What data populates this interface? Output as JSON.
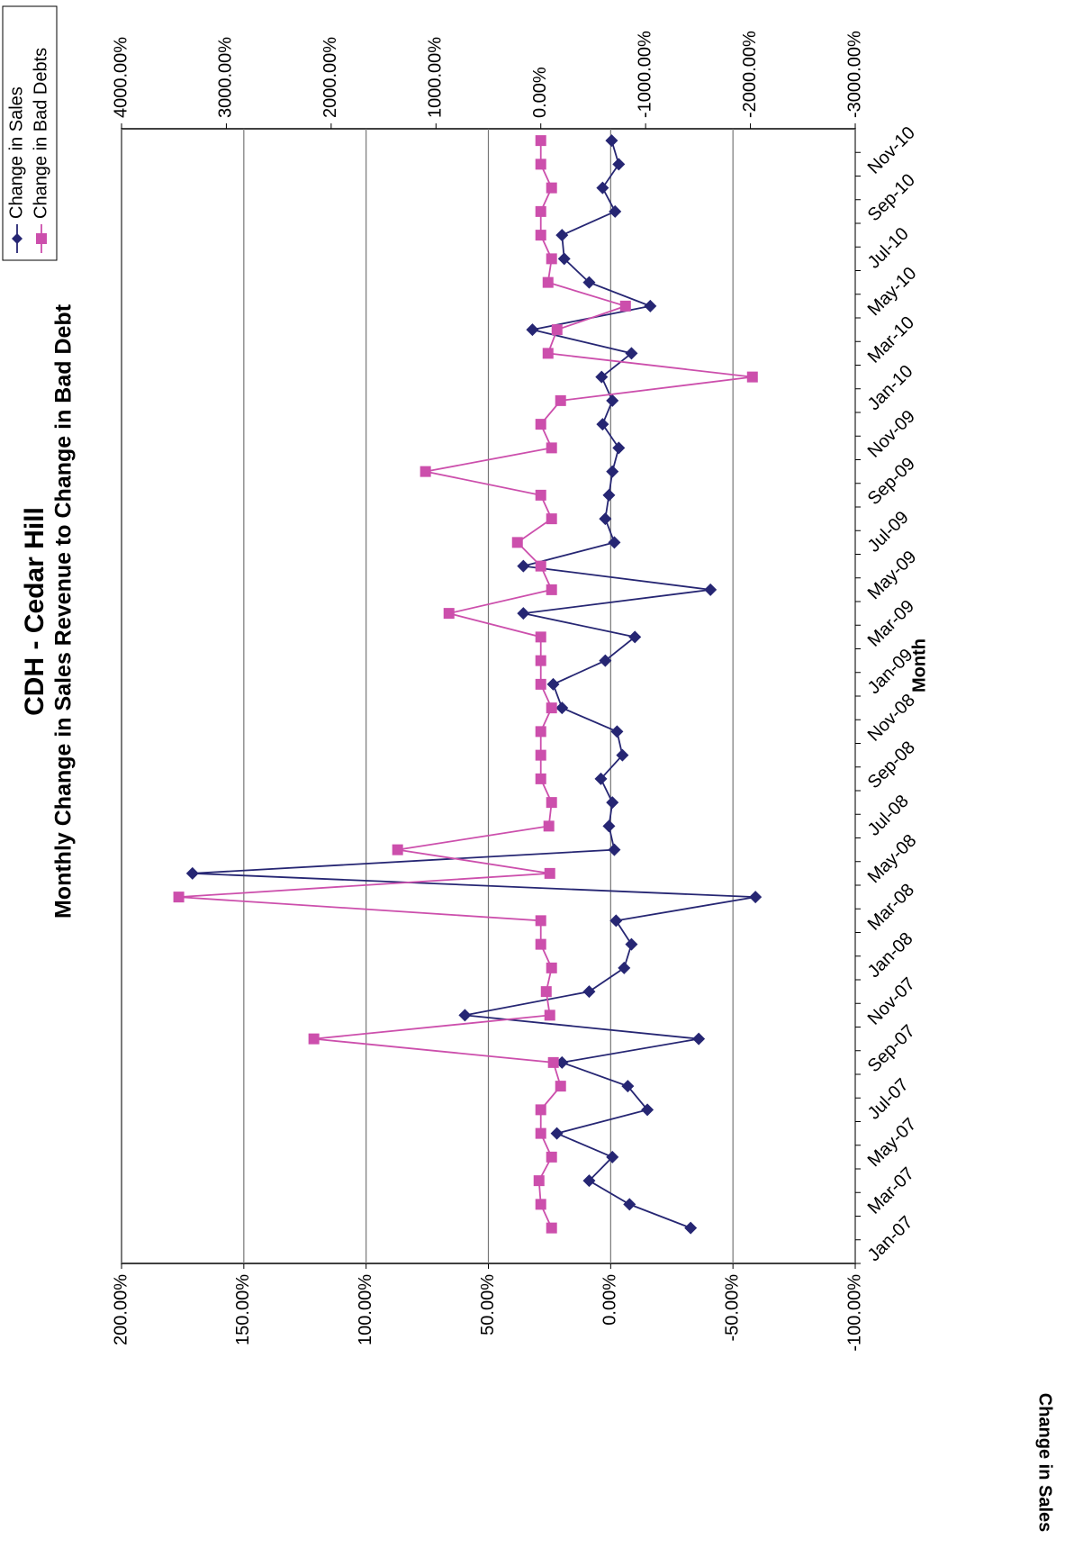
{
  "chart_data": {
    "type": "line",
    "title": "CDH - Cedar Hill",
    "subtitle": "Monthly Change in Sales Revenue to Change in Bad Debt",
    "x_label": "Month",
    "y_label": "Change in Sales",
    "categories": [
      "Jan-07",
      null,
      "Mar-07",
      null,
      "May-07",
      null,
      "Jul-07",
      null,
      "Sep-07",
      null,
      "Nov-07",
      null,
      "Jan-08",
      null,
      "Mar-08",
      null,
      "May-08",
      null,
      "Jul-08",
      null,
      "Sep-08",
      null,
      "Nov-08",
      null,
      "Jan-09",
      null,
      "Mar-09",
      null,
      "May-09",
      null,
      "Jul-09",
      null,
      "Sep-09",
      null,
      "Nov-09",
      null,
      "Jan-10",
      null,
      "Mar-10",
      null,
      "May-10",
      null,
      "Jul-10",
      null,
      "Sep-10",
      null,
      "Nov-10",
      null
    ],
    "series": [
      {
        "name": "Change in Sales",
        "color": "#262673",
        "marker": "diamond",
        "axis": "y",
        "values": [
          null,
          -32.7,
          -7.7,
          8.8,
          -0.7,
          22,
          -15,
          -7,
          19.9,
          -36,
          59.6,
          8.8,
          -5.5,
          -8.5,
          -2.2,
          -59.2,
          171,
          -1.5,
          0.7,
          -0.7,
          4,
          -4.8,
          -2.6,
          19.9,
          23.5,
          2.2,
          -9.9,
          35.7,
          -40.8,
          35.7,
          -1.5,
          2.2,
          0.7,
          -0.7,
          -3.3,
          3.3,
          -0.7,
          3.7,
          -8.5,
          32,
          -16.2,
          8.8,
          19,
          19.9,
          -1.8,
          3.3,
          -3.3,
          -0.4
        ]
      },
      {
        "name": "Change in Bad Debts",
        "color": "#cc4fac",
        "marker": "square",
        "axis": "y2",
        "values": [
          null,
          -103,
          0,
          17,
          -103,
          0,
          0,
          -189,
          -120,
          2165,
          -86,
          -52,
          -103,
          0,
          0,
          3454,
          -86,
          1366,
          -77,
          -103,
          0,
          0,
          0,
          -103,
          0,
          0,
          0,
          876,
          -103,
          0,
          223,
          -103,
          0,
          1100,
          -103,
          0,
          -189,
          -2019,
          -69,
          -155,
          -808,
          -69,
          -103,
          0,
          0,
          -103,
          0,
          0
        ]
      }
    ],
    "ylim": [
      -100,
      200
    ],
    "yticks": [
      {
        "value": -100,
        "label": "-100.00%"
      },
      {
        "value": -50,
        "label": "-50.00%"
      },
      {
        "value": 0,
        "label": "0.00%"
      },
      {
        "value": 50,
        "label": "50.00%"
      },
      {
        "value": 100,
        "label": "100.00%"
      },
      {
        "value": 150,
        "label": "150.00%"
      },
      {
        "value": 200,
        "label": "200.00%"
      }
    ],
    "y2lim": [
      -3000,
      4000
    ],
    "y2ticks": [
      {
        "value": -3000,
        "label": "-3000.00%"
      },
      {
        "value": -2000,
        "label": "-2000.00%"
      },
      {
        "value": -1000,
        "label": "-1000.00%"
      },
      {
        "value": 0,
        "label": "0.00%"
      },
      {
        "value": 1000,
        "label": "1000.00%"
      },
      {
        "value": 2000,
        "label": "2000.00%"
      },
      {
        "value": 3000,
        "label": "3000.00%"
      },
      {
        "value": 4000,
        "label": "4000.00%"
      }
    ],
    "grid": true,
    "legend": "top-right"
  }
}
